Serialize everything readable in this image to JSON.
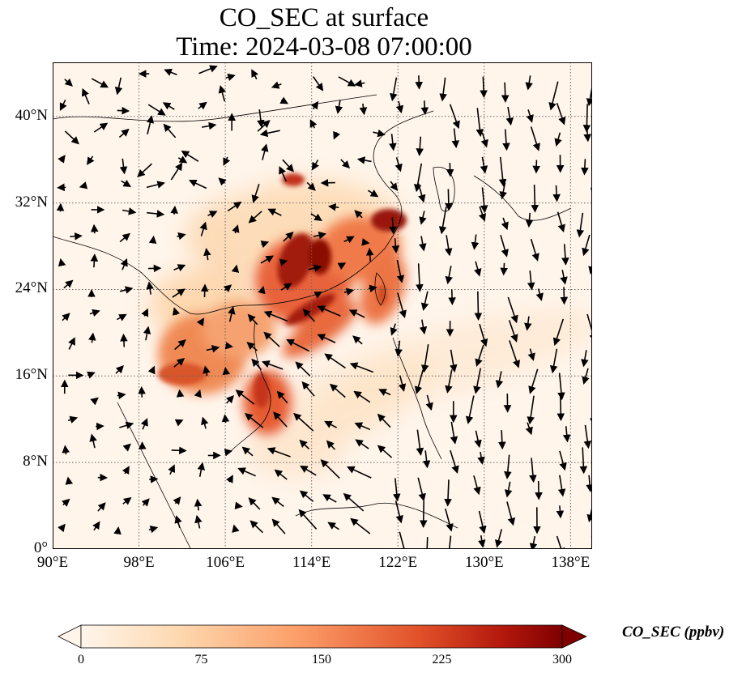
{
  "title_line1": "CO_SEC at surface",
  "title_line2": "Time: 2024-03-08 07:00:00",
  "map": {
    "lon_range": [
      90,
      140
    ],
    "lat_range": [
      0,
      45
    ],
    "lon_ticks": [
      {
        "value": 90,
        "label": "90°E"
      },
      {
        "value": 98,
        "label": "98°E"
      },
      {
        "value": 106,
        "label": "106°E"
      },
      {
        "value": 114,
        "label": "114°E"
      },
      {
        "value": 122,
        "label": "122°E"
      },
      {
        "value": 130,
        "label": "130°E"
      },
      {
        "value": 138,
        "label": "138°E"
      }
    ],
    "lat_ticks": [
      {
        "value": 0,
        "label": "0°"
      },
      {
        "value": 8,
        "label": "8°N"
      },
      {
        "value": 16,
        "label": "16°N"
      },
      {
        "value": 24,
        "label": "24°N"
      },
      {
        "value": 32,
        "label": "32°N"
      },
      {
        "value": 40,
        "label": "40°N"
      }
    ],
    "gridlines": "dotted",
    "background_color": "#fff5eb",
    "colormap": [
      "#fff5eb",
      "#fdd9b0",
      "#fc9e68",
      "#e2522a",
      "#b2170c",
      "#7f0000"
    ],
    "colorbar": {
      "label": "CO_SEC (ppbv)",
      "min": 0,
      "max": 300,
      "ticks": [
        0,
        75,
        150,
        225,
        300
      ],
      "extend": "both"
    }
  }
}
